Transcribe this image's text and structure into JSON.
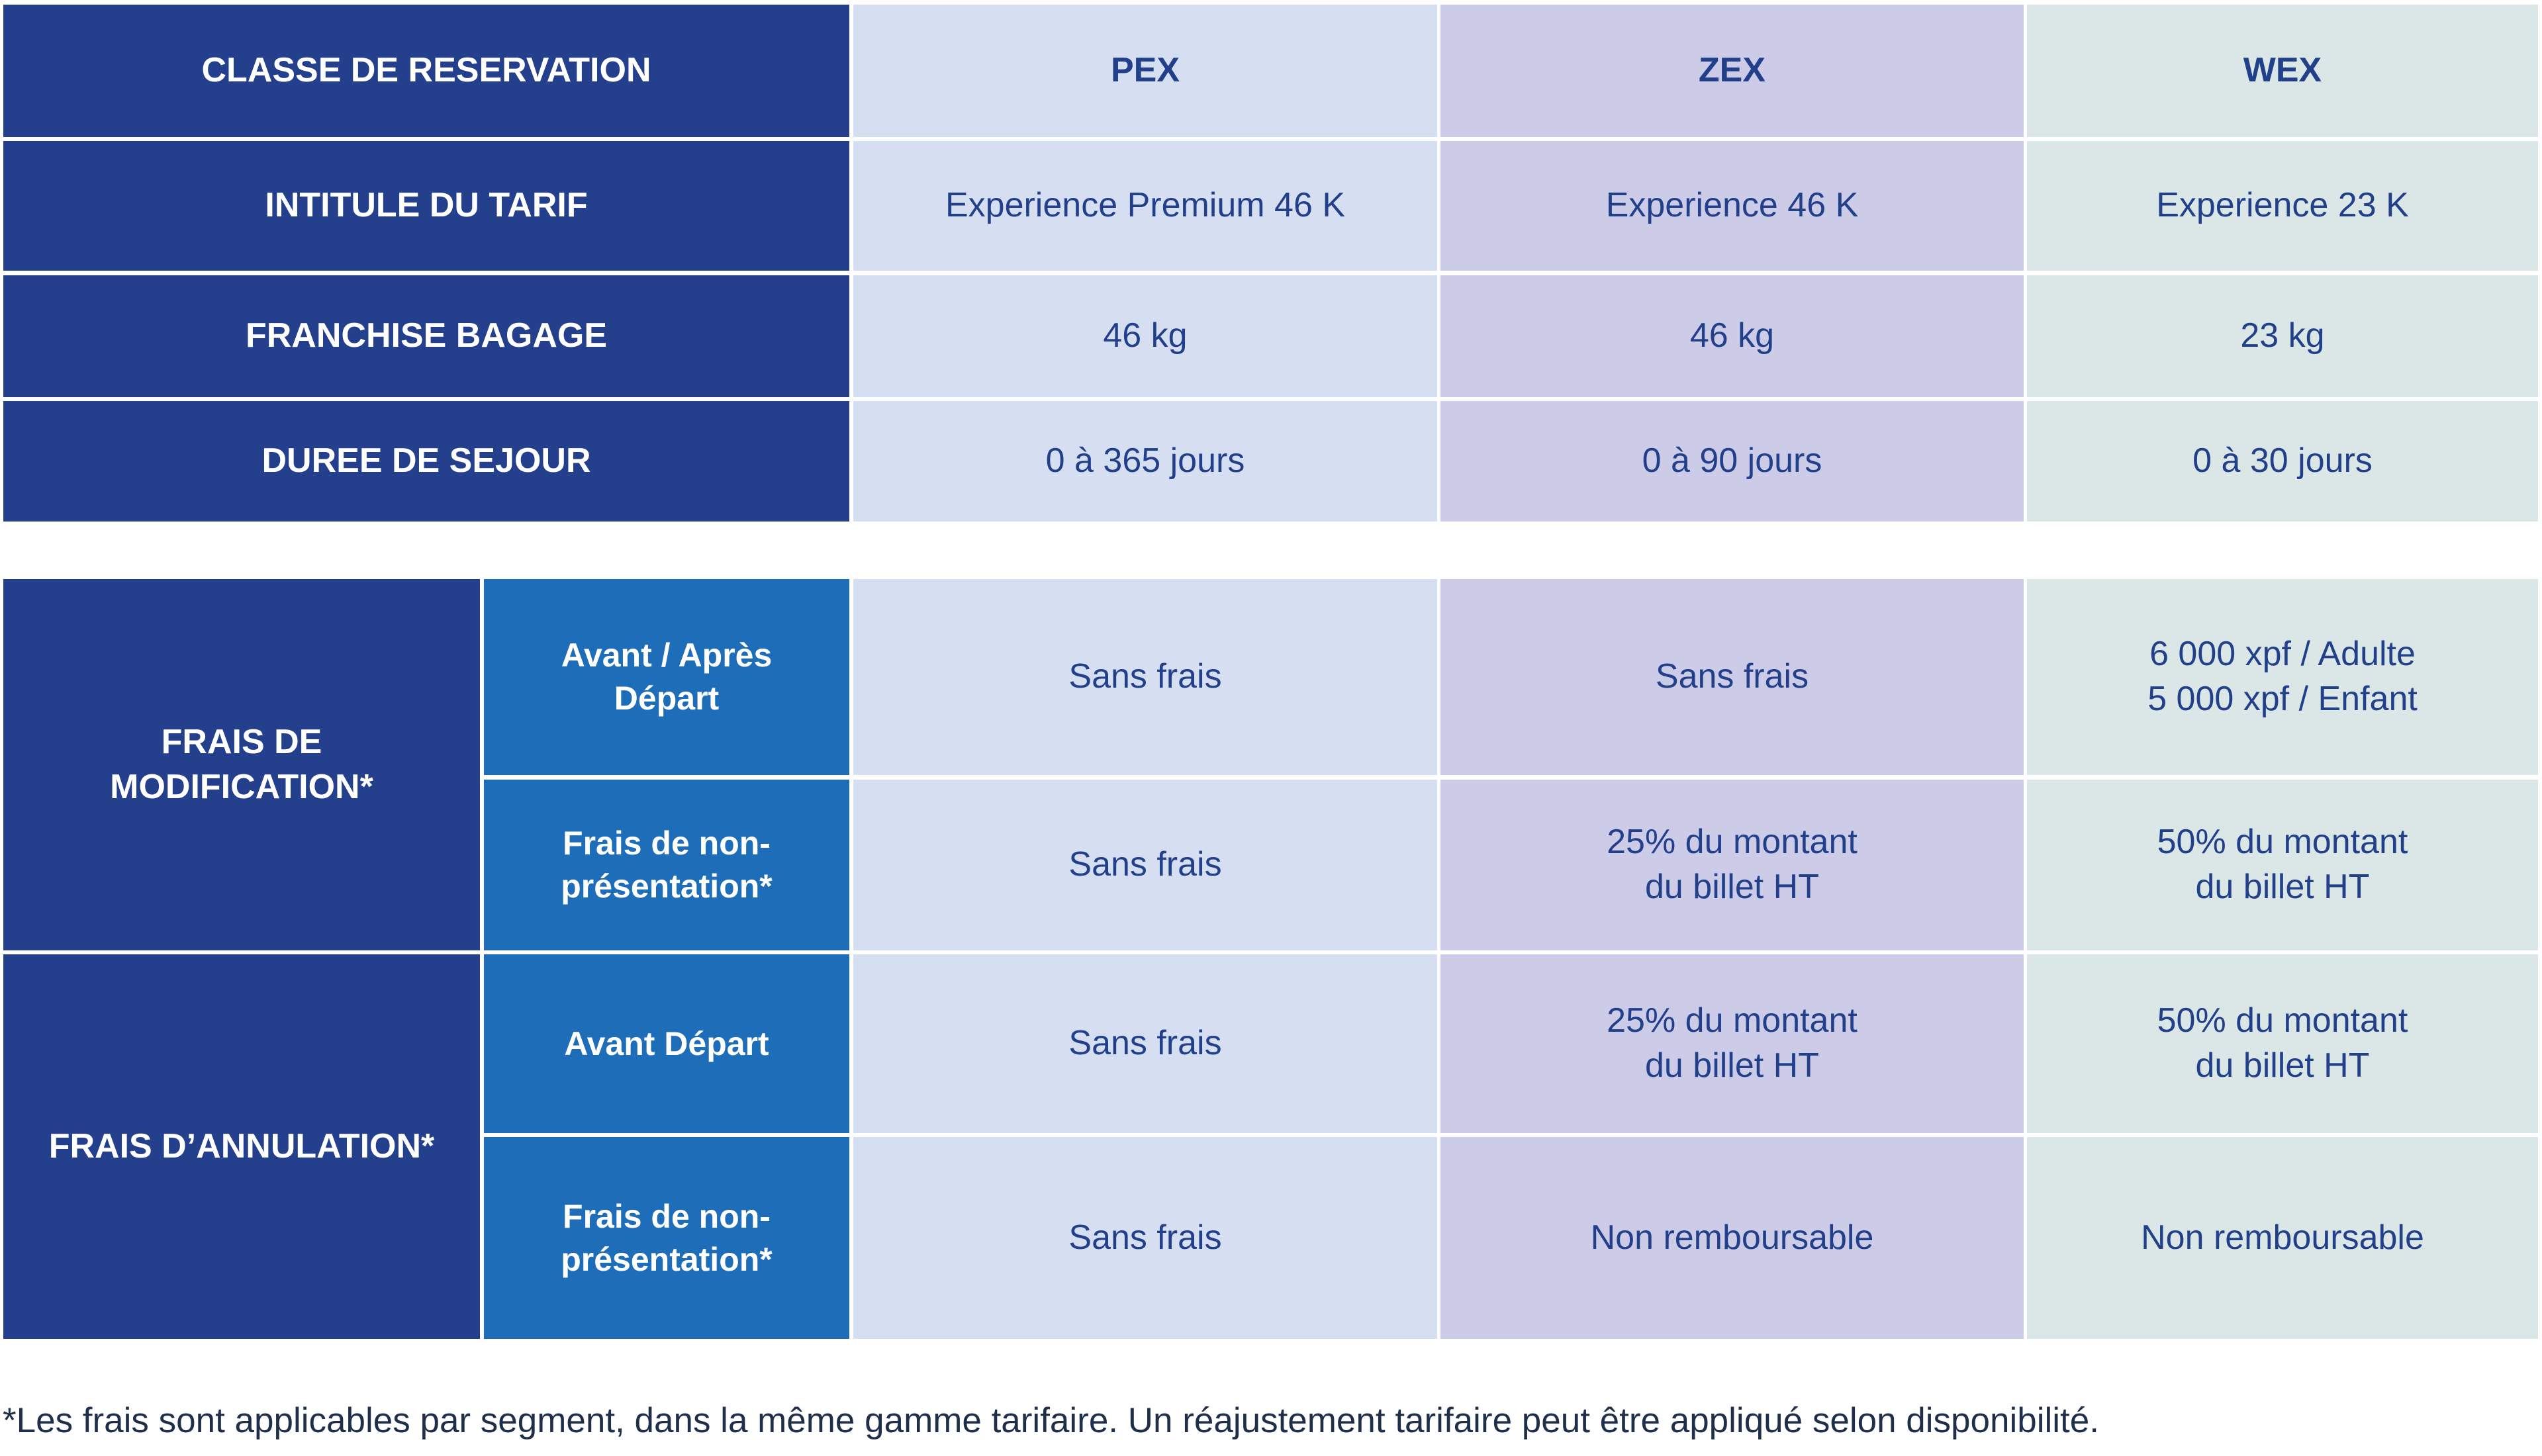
{
  "table_top": {
    "header": {
      "label": "CLASSE DE RESERVATION",
      "pex": "PEX",
      "zex": "ZEX",
      "wex": "WEX"
    },
    "rows": [
      {
        "label": "INTITULE DU TARIF",
        "pex": "Experience Premium 46 K",
        "zex": "Experience 46 K",
        "wex": "Experience 23 K"
      },
      {
        "label": "FRANCHISE BAGAGE",
        "pex": "46 kg",
        "zex": "46 kg",
        "wex": "23 kg"
      },
      {
        "label": "DUREE DE SEJOUR",
        "pex": "0 à 365 jours",
        "zex": "0 à 90 jours",
        "wex": "0 à 30 jours"
      }
    ]
  },
  "table_fees": {
    "modification": {
      "label": "FRAIS DE\nMODIFICATION*",
      "rows": [
        {
          "sub": "Avant / Après\nDépart",
          "pex": "Sans frais",
          "zex": "Sans frais",
          "wex": "6 000 xpf / Adulte\n5 000 xpf / Enfant"
        },
        {
          "sub": "Frais de non-\nprésentation*",
          "pex": "Sans frais",
          "zex": "25% du montant\ndu billet HT",
          "wex": "50% du montant\ndu billet HT"
        }
      ]
    },
    "annulation": {
      "label": "FRAIS D’ANNULATION*",
      "rows": [
        {
          "sub": "Avant Départ",
          "pex": "Sans frais",
          "zex": "25% du montant\ndu billet HT",
          "wex": "50% du montant\ndu billet HT"
        },
        {
          "sub": "Frais de non-\nprésentation*",
          "pex": "Sans frais",
          "zex": "Non remboursable",
          "wex": "Non remboursable"
        }
      ]
    }
  },
  "footnote": "*Les frais sont applicables par segment, dans la même gamme tarifaire. Un réajustement tarifaire peut être appliqué selon disponibilité."
}
